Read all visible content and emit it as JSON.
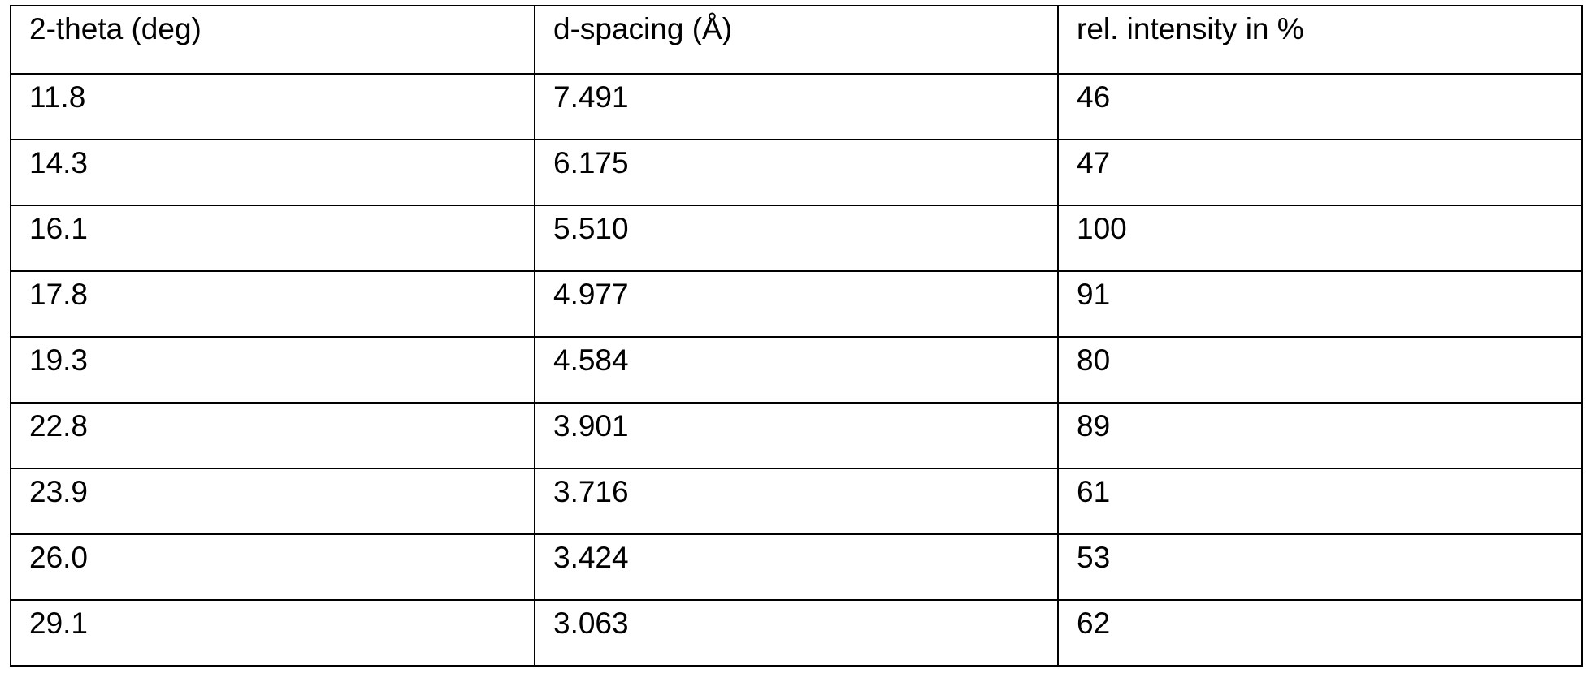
{
  "table": {
    "header": [
      "2-theta (deg)",
      "d-spacing (Å)",
      "rel. intensity in %"
    ],
    "rows": [
      [
        "11.8",
        "7.491",
        "46"
      ],
      [
        "14.3",
        "6.175",
        "47"
      ],
      [
        "16.1",
        "5.510",
        "100"
      ],
      [
        "17.8",
        "4.977",
        "91"
      ],
      [
        "19.3",
        "4.584",
        "80"
      ],
      [
        "22.8",
        "3.901",
        "89"
      ],
      [
        "23.9",
        "3.716",
        "61"
      ],
      [
        "26.0",
        "3.424",
        "53"
      ],
      [
        "29.1",
        "3.063",
        "62"
      ]
    ]
  }
}
